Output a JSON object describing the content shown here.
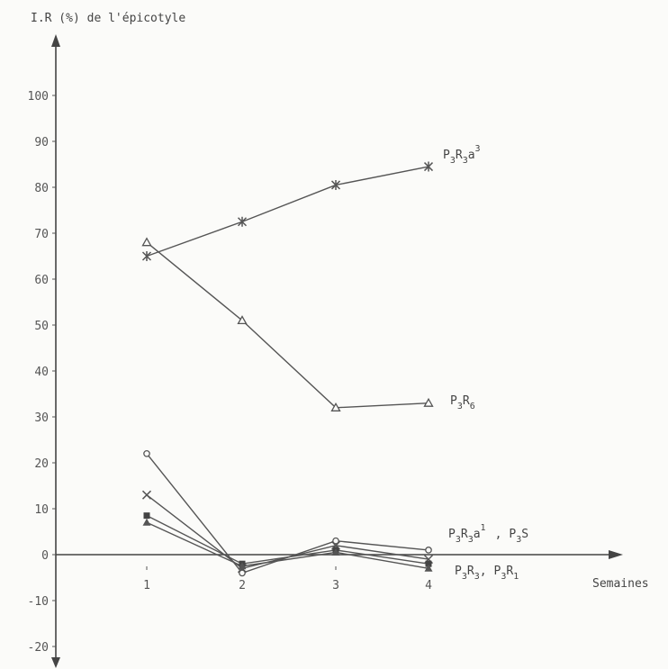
{
  "chart_data": {
    "type": "line",
    "ylabel": "I.R (%) de l'épicotyle",
    "xlabel": "Semaines",
    "x": [
      1,
      2,
      3,
      4
    ],
    "xticks": [
      "1",
      "2",
      "3",
      "4"
    ],
    "yticks": [
      "100",
      "90",
      "80",
      "70",
      "60",
      "50",
      "40",
      "30",
      "20",
      "10",
      "0",
      "-10",
      "-20"
    ],
    "ylim": [
      -20,
      100
    ],
    "grid": false,
    "series": [
      {
        "name": "P3R3a3",
        "marker": "asterisk",
        "values": [
          65,
          72.5,
          80.5,
          84.5
        ]
      },
      {
        "name": "P3R6",
        "marker": "triangle",
        "values": [
          68,
          51,
          32,
          33
        ]
      },
      {
        "name": "P3R3",
        "marker": "circle",
        "values": [
          22,
          -4,
          3,
          1
        ]
      },
      {
        "name": "P3R1",
        "marker": "cross",
        "values": [
          13,
          -3,
          2,
          -1
        ]
      },
      {
        "name": "P3R3a1",
        "marker": "square",
        "values": [
          8.5,
          -2,
          1,
          -2
        ]
      },
      {
        "name": "P3S",
        "marker": "triangle-filled",
        "values": [
          7,
          -2.5,
          0.5,
          -3
        ]
      }
    ],
    "labels": {
      "a3": {
        "main": [
          "P",
          "R",
          "a"
        ],
        "subs": [
          "3",
          "3"
        ],
        "sup": "3"
      },
      "r6": {
        "main": [
          "P",
          "R"
        ],
        "subs": [
          "3",
          "6"
        ]
      },
      "r3a1_s": {
        "text1": [
          "P",
          "R",
          "a"
        ],
        "subs1": [
          "3",
          "3"
        ],
        "sup1": "1",
        "sep": ",",
        "text2": [
          "P",
          "S"
        ],
        "subs2": [
          "3"
        ]
      },
      "r3_r1": {
        "text1": [
          "P",
          "R"
        ],
        "subs1": [
          "3",
          "3"
        ],
        "sep": ",",
        "text2": [
          "P",
          "R"
        ],
        "subs2": [
          "3",
          "1"
        ]
      }
    }
  }
}
